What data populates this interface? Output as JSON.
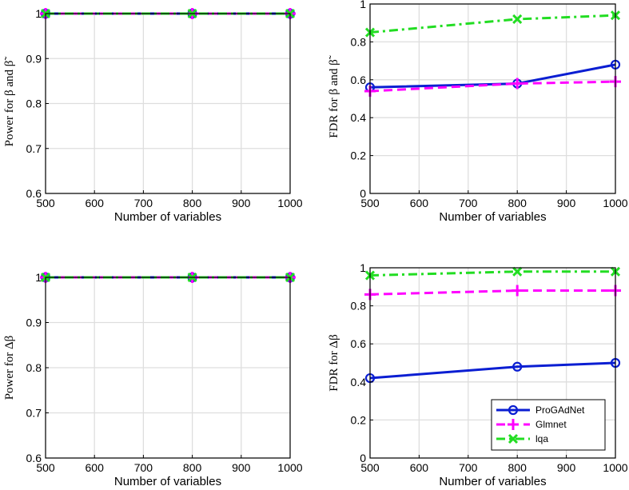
{
  "chart_data": [
    {
      "type": "line",
      "xlabel": "Number of variables",
      "ylabel": "Power for β and β̃",
      "x": [
        500,
        800,
        1000
      ],
      "xlim": [
        500,
        1000
      ],
      "xticks": [
        500,
        600,
        700,
        800,
        900,
        1000
      ],
      "ylim": [
        0.6,
        1.0
      ],
      "yticks": [
        0.6,
        0.7,
        0.8,
        0.9,
        1.0
      ],
      "ytick_labels": [
        "0.6",
        "0.7",
        "0.8",
        "0.9",
        "1"
      ],
      "grid": true,
      "series": [
        {
          "name": "ProGAdNet",
          "values": [
            1,
            1,
            1
          ]
        },
        {
          "name": "Glmnet",
          "values": [
            1,
            1,
            1
          ]
        },
        {
          "name": "lqa",
          "values": [
            1,
            1,
            1
          ]
        }
      ]
    },
    {
      "type": "line",
      "xlabel": "Number of variables",
      "ylabel": "FDR for β and β̃",
      "x": [
        500,
        800,
        1000
      ],
      "xlim": [
        500,
        1000
      ],
      "xticks": [
        500,
        600,
        700,
        800,
        900,
        1000
      ],
      "ylim": [
        0,
        1.0
      ],
      "yticks": [
        0,
        0.2,
        0.4,
        0.6,
        0.8,
        1.0
      ],
      "ytick_labels": [
        "0",
        "0.2",
        "0.4",
        "0.6",
        "0.8",
        "1"
      ],
      "grid": true,
      "series": [
        {
          "name": "ProGAdNet",
          "values": [
            0.56,
            0.58,
            0.68
          ]
        },
        {
          "name": "Glmnet",
          "values": [
            0.54,
            0.58,
            0.59
          ]
        },
        {
          "name": "lqa",
          "values": [
            0.85,
            0.92,
            0.94
          ]
        }
      ]
    },
    {
      "type": "line",
      "xlabel": "Number of variables",
      "ylabel": "Power for Δβ",
      "x": [
        500,
        800,
        1000
      ],
      "xlim": [
        500,
        1000
      ],
      "xticks": [
        500,
        600,
        700,
        800,
        900,
        1000
      ],
      "ylim": [
        0.6,
        1.0
      ],
      "yticks": [
        0.6,
        0.7,
        0.8,
        0.9,
        1.0
      ],
      "ytick_labels": [
        "0.6",
        "0.7",
        "0.8",
        "0.9",
        "1"
      ],
      "grid": true,
      "series": [
        {
          "name": "ProGAdNet",
          "values": [
            1,
            1,
            1
          ]
        },
        {
          "name": "Glmnet",
          "values": [
            1,
            1,
            1
          ]
        },
        {
          "name": "lqa",
          "values": [
            1,
            1,
            1
          ]
        }
      ]
    },
    {
      "type": "line",
      "xlabel": "Number of variables",
      "ylabel": "FDR for Δβ",
      "x": [
        500,
        800,
        1000
      ],
      "xlim": [
        500,
        1000
      ],
      "xticks": [
        500,
        600,
        700,
        800,
        900,
        1000
      ],
      "ylim": [
        0,
        1.0
      ],
      "yticks": [
        0,
        0.2,
        0.4,
        0.6,
        0.8,
        1.0
      ],
      "ytick_labels": [
        "0",
        "0.2",
        "0.4",
        "0.6",
        "0.8",
        "1"
      ],
      "grid": true,
      "legend": "bottom-right",
      "series": [
        {
          "name": "ProGAdNet",
          "values": [
            0.42,
            0.48,
            0.5
          ]
        },
        {
          "name": "Glmnet",
          "values": [
            0.86,
            0.88,
            0.88
          ]
        },
        {
          "name": "lqa",
          "values": [
            0.96,
            0.98,
            0.98
          ]
        }
      ]
    }
  ],
  "legend": {
    "entries": [
      "ProGAdNet",
      "Glmnet",
      "lqa"
    ]
  },
  "styles": {
    "ProGAdNet": {
      "color": "#0a1ed2",
      "marker": "circle",
      "dash": "solid"
    },
    "Glmnet": {
      "color": "#ff00ff",
      "marker": "plus",
      "dash": "dashed"
    },
    "lqa": {
      "color": "#22dd22",
      "marker": "x",
      "dash": "dashdot"
    }
  }
}
